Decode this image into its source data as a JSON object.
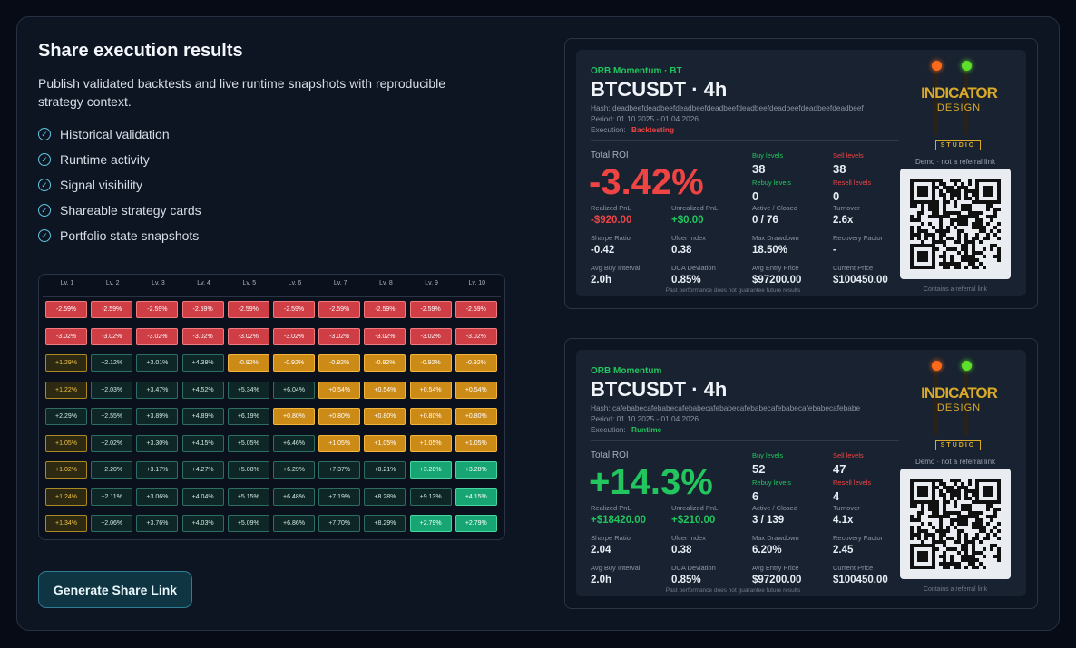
{
  "header": {
    "title": "Share execution results",
    "description": "Publish validated backtests and live runtime snapshots with reproducible strategy context."
  },
  "features": [
    "Historical validation",
    "Runtime activity",
    "Signal visibility",
    "Shareable strategy cards",
    "Portfolio state snapshots"
  ],
  "grid": {
    "columns": [
      "Lv. 1",
      "Lv. 2",
      "Lv. 3",
      "Lv. 4",
      "Lv. 5",
      "Lv. 6",
      "Lv. 7",
      "Lv. 8",
      "Lv. 9",
      "Lv. 10"
    ],
    "rows": [
      [
        "-2.59%",
        "-2.59%",
        "-2.59%",
        "-2.59%",
        "-2.59%",
        "-2.59%",
        "-2.59%",
        "-2.59%",
        "-2.59%",
        "-2.59%"
      ],
      [
        "-3.02%",
        "-3.02%",
        "-3.02%",
        "-3.02%",
        "-3.02%",
        "-3.02%",
        "-3.02%",
        "-3.02%",
        "-3.02%",
        "-3.02%"
      ],
      [
        "+1.29%",
        "+2.12%",
        "+3.01%",
        "+4.38%",
        "-0.92%",
        "-0.92%",
        "-0.92%",
        "-0.92%",
        "-0.92%",
        "-0.92%"
      ],
      [
        "+1.22%",
        "+2.03%",
        "+3.47%",
        "+4.52%",
        "+5.34%",
        "+6.04%",
        "+0.54%",
        "+0.54%",
        "+0.54%",
        "+0.54%"
      ],
      [
        "+2.29%",
        "+2.55%",
        "+3.89%",
        "+4.89%",
        "+6.19%",
        "+0.80%",
        "+0.80%",
        "+0.80%",
        "+0.80%",
        "+0.80%"
      ],
      [
        "+1.05%",
        "+2.02%",
        "+3.30%",
        "+4.15%",
        "+5.05%",
        "+6.46%",
        "+1.05%",
        "+1.05%",
        "+1.05%",
        "+1.05%"
      ],
      [
        "+1.02%",
        "+2.20%",
        "+3.17%",
        "+4.27%",
        "+5.08%",
        "+6.29%",
        "+7.37%",
        "+8.21%",
        "+3.28%",
        "+3.28%"
      ],
      [
        "+1.24%",
        "+2.11%",
        "+3.06%",
        "+4.04%",
        "+5.15%",
        "+6.48%",
        "+7.19%",
        "+8.28%",
        "+9.13%",
        "+4.15%"
      ],
      [
        "+1.34%",
        "+2.06%",
        "+3.76%",
        "+4.03%",
        "+5.09%",
        "+6.86%",
        "+7.70%",
        "+8.29%",
        "+2.79%",
        "+2.79%"
      ]
    ],
    "tones": [
      "rrrrrrrrrr",
      "rrrrrrrrrr",
      "dtttaaaaaa",
      "dtttttaaaa",
      "tttttaaaaa",
      "dtttttaaaa",
      "dtttttttgg",
      "dttttttttg",
      "dtttttttgg"
    ]
  },
  "button": "Generate Share Link",
  "logo": {
    "line1": "INDICATOR",
    "line2": "DESIGN",
    "line3": "STUDIO"
  },
  "cards": [
    {
      "tag": "ORB Momentum · BT",
      "pair": "BTCUSDT · 4h",
      "hash": "Hash: deadbeefdeadbeefdeadbeefdeadbeefdeadbeefdeadbeefdeadbeefdeadbeef",
      "period": "Period: 01.10.2025 - 01.04.2026",
      "execution_label": "Execution:",
      "execution": "Backtesting",
      "accent": "#ef4444",
      "roi_label": "Total ROI",
      "roi": "-3.42%",
      "levels": [
        {
          "label": "Buy levels",
          "value": "38"
        },
        {
          "label": "Sell levels",
          "value": "38"
        },
        {
          "label": "Rebuy levels",
          "value": "0"
        },
        {
          "label": "Resell levels",
          "value": "0"
        }
      ],
      "stats": [
        {
          "label": "Realized PnL",
          "value": "-$920.00"
        },
        {
          "label": "Unrealized PnL",
          "value": "+$0.00"
        },
        {
          "label": "Active / Closed",
          "value": "0 / 76"
        },
        {
          "label": "Turnover",
          "value": "2.6x"
        },
        {
          "label": "Sharpe Ratio",
          "value": "-0.42"
        },
        {
          "label": "Ulcer Index",
          "value": "0.38"
        },
        {
          "label": "Max Drawdown",
          "value": "18.50%"
        },
        {
          "label": "Recovery Factor",
          "value": "-"
        },
        {
          "label": "Avg Buy Interval",
          "value": "2.0h"
        },
        {
          "label": "DCA Deviation",
          "value": "0.85%"
        },
        {
          "label": "Avg Entry Price",
          "value": "$97200.00"
        },
        {
          "label": "Current Price",
          "value": "$100450.00"
        }
      ],
      "disclaimer": "Past performance does not guarantee future results",
      "demo_note": "Demo · not a referral link",
      "referral_note": "Contains a referral link"
    },
    {
      "tag": "ORB Momentum",
      "pair": "BTCUSDT · 4h",
      "hash": "Hash: cafebabecafebabecafebabecafebabecafebabecafebabecafebabecafebabe",
      "period": "Period: 01.10.2025 - 01.04.2026",
      "execution_label": "Execution:",
      "execution": "Runtime",
      "accent": "#22c55e",
      "roi_label": "Total ROI",
      "roi": "+14.3%",
      "levels": [
        {
          "label": "Buy levels",
          "value": "52"
        },
        {
          "label": "Sell levels",
          "value": "47"
        },
        {
          "label": "Rebuy levels",
          "value": "6"
        },
        {
          "label": "Resell levels",
          "value": "4"
        }
      ],
      "stats": [
        {
          "label": "Realized PnL",
          "value": "+$18420.00"
        },
        {
          "label": "Unrealized PnL",
          "value": "+$210.00"
        },
        {
          "label": "Active / Closed",
          "value": "3 / 139"
        },
        {
          "label": "Turnover",
          "value": "4.1x"
        },
        {
          "label": "Sharpe Ratio",
          "value": "2.04"
        },
        {
          "label": "Ulcer Index",
          "value": "0.38"
        },
        {
          "label": "Max Drawdown",
          "value": "6.20%"
        },
        {
          "label": "Recovery Factor",
          "value": "2.45"
        },
        {
          "label": "Avg Buy Interval",
          "value": "2.0h"
        },
        {
          "label": "DCA Deviation",
          "value": "0.85%"
        },
        {
          "label": "Avg Entry Price",
          "value": "$97200.00"
        },
        {
          "label": "Current Price",
          "value": "$100450.00"
        }
      ],
      "disclaimer": "Past performance does not guarantee future results",
      "demo_note": "Demo · not a referral link",
      "referral_note": "Contains a referral link"
    }
  ]
}
